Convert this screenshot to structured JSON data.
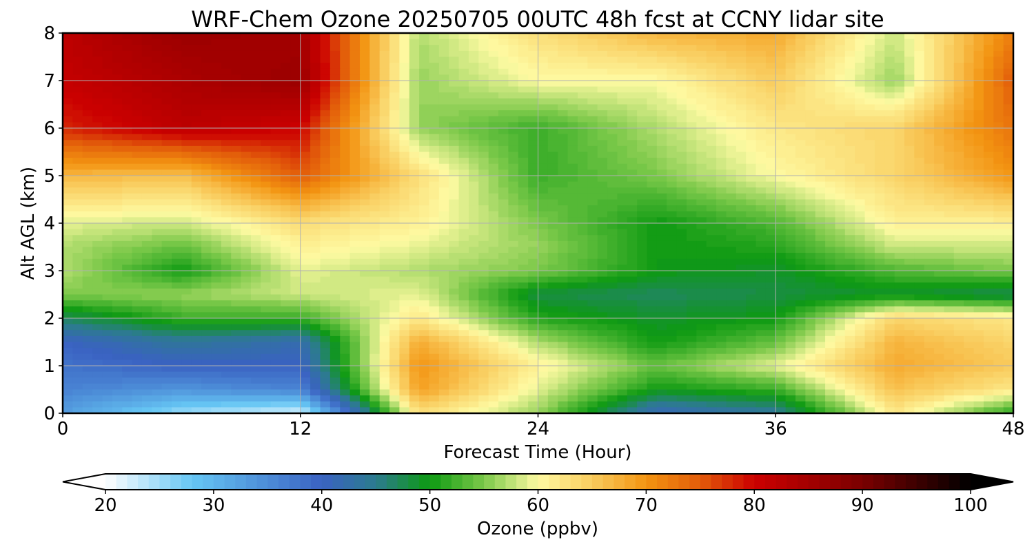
{
  "chart_data": {
    "type": "heatmap",
    "title": "WRF-Chem Ozone  20250705 00UTC 48h fcst at CCNY lidar site",
    "xlabel": "Forecast Time (Hour)",
    "ylabel": "Alt AGL (km)",
    "xlim": [
      0,
      48
    ],
    "ylim": [
      0,
      8
    ],
    "x_ticks": [
      "0",
      "12",
      "24",
      "36",
      "48"
    ],
    "y_ticks": [
      "0",
      "1",
      "2",
      "3",
      "4",
      "5",
      "6",
      "7",
      "8"
    ],
    "grid": true,
    "x": [
      0,
      6,
      12,
      18,
      24,
      30,
      36,
      42,
      48
    ],
    "y": [
      0,
      0.5,
      1,
      1.5,
      2,
      2.5,
      3,
      3.5,
      4,
      5,
      6,
      7,
      8
    ],
    "z": [
      [
        33,
        25,
        22,
        63,
        56,
        41,
        44,
        62,
        51
      ],
      [
        36,
        34,
        36,
        69,
        59,
        50,
        52,
        66,
        62
      ],
      [
        38,
        40,
        40,
        70,
        61,
        54,
        59,
        68,
        65
      ],
      [
        40,
        44,
        42,
        68,
        57,
        50,
        54,
        67,
        64
      ],
      [
        47,
        52,
        52,
        62,
        51,
        49,
        50,
        64,
        62
      ],
      [
        55,
        56,
        58,
        59,
        48,
        47,
        48,
        49,
        47
      ],
      [
        57,
        50,
        59,
        57,
        55,
        50,
        49,
        53,
        55
      ],
      [
        57,
        54,
        61,
        59,
        56,
        50,
        51,
        58,
        58
      ],
      [
        59,
        58,
        63,
        61,
        55,
        50,
        53,
        61,
        61
      ],
      [
        67,
        66,
        75,
        63,
        52,
        55,
        60,
        64,
        70
      ],
      [
        78,
        82,
        80,
        56,
        52,
        57,
        62,
        64,
        73
      ],
      [
        81,
        84,
        86,
        56,
        60,
        60,
        65,
        56,
        75
      ],
      [
        82,
        86,
        85,
        57,
        63,
        67,
        68,
        58,
        72
      ]
    ],
    "colorbar": {
      "label": "Ozone  (ppbv)",
      "range": [
        20,
        100
      ],
      "ticks": [
        "20",
        "30",
        "40",
        "50",
        "60",
        "70",
        "80",
        "90",
        "100"
      ],
      "extend": "both",
      "colors": {
        "20": "#ffffff",
        "28": "#66c6f4",
        "40": "#3a62c2",
        "45": "#2c7b8e",
        "50": "#0d9a12",
        "55": "#7cc94a",
        "60": "#fefaa2",
        "65": "#f9cc5e",
        "70": "#f39411",
        "75": "#e25c0a",
        "80": "#cc0000",
        "90": "#7a0000",
        "100": "#000000"
      }
    }
  }
}
